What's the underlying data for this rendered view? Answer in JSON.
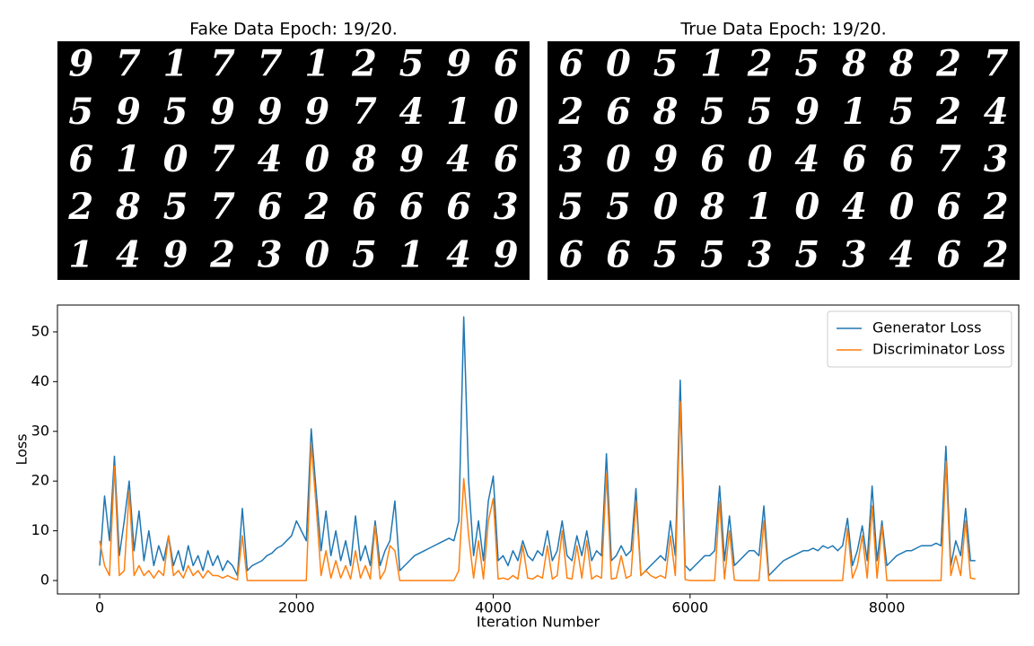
{
  "image_panels": [
    {
      "title": "Fake Data Epoch: 19/20.",
      "digits": [
        [
          "9",
          "7",
          "1",
          "7",
          "7",
          "1",
          "2",
          "5",
          "9",
          "6"
        ],
        [
          "5",
          "9",
          "5",
          "9",
          "9",
          "9",
          "7",
          "4",
          "1",
          "0"
        ],
        [
          "6",
          "1",
          "0",
          "7",
          "4",
          "0",
          "8",
          "9",
          "4",
          "6"
        ],
        [
          "2",
          "8",
          "5",
          "7",
          "6",
          "2",
          "6",
          "6",
          "6",
          "3"
        ],
        [
          "1",
          "4",
          "9",
          "2",
          "3",
          "0",
          "5",
          "1",
          "4",
          "9"
        ]
      ]
    },
    {
      "title": "True Data Epoch: 19/20.",
      "digits": [
        [
          "6",
          "0",
          "5",
          "1",
          "2",
          "5",
          "8",
          "8",
          "2",
          "7"
        ],
        [
          "2",
          "6",
          "8",
          "5",
          "5",
          "9",
          "1",
          "5",
          "2",
          "4"
        ],
        [
          "3",
          "0",
          "9",
          "6",
          "0",
          "4",
          "6",
          "6",
          "7",
          "3"
        ],
        [
          "5",
          "5",
          "0",
          "8",
          "1",
          "0",
          "4",
          "0",
          "6",
          "2"
        ],
        [
          "6",
          "6",
          "5",
          "5",
          "3",
          "5",
          "3",
          "4",
          "6",
          "2"
        ]
      ]
    }
  ],
  "chart_data": {
    "type": "line",
    "xlabel": "Iteration Number",
    "ylabel": "Loss",
    "xlim": [
      -429,
      9340
    ],
    "ylim": [
      -2.7,
      55.4
    ],
    "xticks": [
      0,
      2000,
      4000,
      6000,
      8000
    ],
    "yticks": [
      0,
      10,
      20,
      30,
      40,
      50
    ],
    "legend": "upper right",
    "x": [
      0,
      50,
      100,
      150,
      200,
      250,
      300,
      350,
      400,
      450,
      500,
      550,
      600,
      650,
      700,
      750,
      800,
      850,
      900,
      950,
      1000,
      1050,
      1100,
      1150,
      1200,
      1250,
      1300,
      1350,
      1400,
      1450,
      1500,
      1550,
      1600,
      1650,
      1700,
      1750,
      1800,
      1850,
      1900,
      1950,
      2000,
      2050,
      2100,
      2150,
      2200,
      2250,
      2300,
      2350,
      2400,
      2450,
      2500,
      2550,
      2600,
      2650,
      2700,
      2750,
      2800,
      2850,
      2900,
      2950,
      3000,
      3050,
      3100,
      3150,
      3200,
      3250,
      3300,
      3350,
      3400,
      3450,
      3500,
      3550,
      3600,
      3650,
      3700,
      3750,
      3800,
      3850,
      3900,
      3950,
      4000,
      4050,
      4100,
      4150,
      4200,
      4250,
      4300,
      4350,
      4400,
      4450,
      4500,
      4550,
      4600,
      4650,
      4700,
      4750,
      4800,
      4850,
      4900,
      4950,
      5000,
      5050,
      5100,
      5150,
      5200,
      5250,
      5300,
      5350,
      5400,
      5450,
      5500,
      5550,
      5600,
      5650,
      5700,
      5750,
      5800,
      5850,
      5900,
      5950,
      6000,
      6050,
      6100,
      6150,
      6200,
      6250,
      6300,
      6350,
      6400,
      6450,
      6500,
      6550,
      6600,
      6650,
      6700,
      6750,
      6800,
      6850,
      6900,
      6950,
      7000,
      7050,
      7100,
      7150,
      7200,
      7250,
      7300,
      7350,
      7400,
      7450,
      7500,
      7550,
      7600,
      7650,
      7700,
      7750,
      7800,
      7850,
      7900,
      7950,
      8000,
      8050,
      8100,
      8150,
      8200,
      8250,
      8300,
      8350,
      8400,
      8450,
      8500,
      8550,
      8600,
      8650,
      8700,
      8750,
      8800,
      8850,
      8900
    ],
    "series": [
      {
        "name": "Generator Loss",
        "color": "#1f77b4",
        "values": [
          3,
          17,
          8,
          25,
          5,
          12,
          20,
          6,
          14,
          4,
          10,
          3,
          7,
          4,
          9,
          3,
          6,
          2,
          7,
          3,
          5,
          2,
          6,
          3,
          5,
          2,
          4,
          3,
          1,
          14.5,
          2,
          3,
          3.5,
          4,
          5,
          5.5,
          6.5,
          7,
          8,
          9,
          12,
          10,
          8,
          30.5,
          18,
          6,
          14,
          5,
          10,
          4,
          8,
          3,
          13,
          4,
          7,
          3,
          12,
          3,
          6,
          8,
          16,
          2,
          3,
          4,
          5,
          5.5,
          6,
          6.5,
          7,
          7.5,
          8,
          8.5,
          8,
          12,
          53,
          20,
          5,
          12,
          4,
          16,
          21,
          4,
          5,
          3,
          6,
          4,
          8,
          5,
          4,
          6,
          5,
          10,
          4,
          6,
          12,
          5,
          4,
          9,
          5,
          10,
          4,
          6,
          5,
          25.5,
          4,
          5,
          7,
          5,
          6,
          18.5,
          1,
          2,
          3,
          4,
          5,
          4,
          12,
          5,
          40.3,
          3,
          2,
          3,
          4,
          5,
          5,
          6,
          19,
          4,
          13,
          3,
          4,
          5,
          6,
          6,
          5,
          15,
          1,
          2,
          3,
          4,
          4.5,
          5,
          5.5,
          6,
          6,
          6.5,
          6,
          7,
          6.5,
          7,
          6,
          7,
          12.5,
          3,
          6,
          11,
          4,
          19,
          4,
          12,
          3,
          4,
          5,
          5.5,
          6,
          6,
          6.5,
          7,
          7,
          7,
          7.5,
          7,
          27,
          3,
          8,
          5,
          14.5,
          4,
          4
        ]
      },
      {
        "name": "Discriminator Loss",
        "color": "#ff7f0e",
        "values": [
          8,
          3,
          1,
          23,
          1,
          2,
          18,
          1,
          3,
          1,
          2,
          0.5,
          2,
          1,
          9,
          1,
          2,
          0.5,
          3,
          1,
          2,
          0.5,
          2,
          1,
          1,
          0.5,
          1,
          0.5,
          0.1,
          9,
          0,
          0,
          0,
          0,
          0,
          0,
          0,
          0,
          0,
          0,
          0,
          0,
          0,
          27.5,
          15,
          1,
          6,
          0.5,
          4,
          0.5,
          3,
          0.3,
          6,
          0.5,
          3,
          0.3,
          11,
          0.3,
          2,
          7,
          6,
          0,
          0,
          0,
          0,
          0,
          0,
          0,
          0,
          0,
          0,
          0,
          0,
          2,
          20.5,
          9,
          0.5,
          8,
          0.3,
          12,
          16.5,
          0.3,
          0.5,
          0.2,
          1,
          0.3,
          7,
          0.5,
          0.3,
          1,
          0.5,
          7,
          0.3,
          1,
          10,
          0.5,
          0.3,
          7,
          0.5,
          8,
          0.3,
          1,
          0.5,
          21.5,
          0.3,
          0.5,
          5,
          0.5,
          1,
          16,
          1,
          2,
          1,
          0.5,
          1,
          0.5,
          9,
          1,
          36,
          0.2,
          0,
          0,
          0,
          0,
          0,
          0,
          16,
          0.3,
          10,
          0.1,
          0,
          0,
          0,
          0,
          0,
          12,
          0,
          0,
          0,
          0,
          0,
          0,
          0,
          0,
          0,
          0,
          0,
          0,
          0,
          0,
          0,
          0,
          10.5,
          0.5,
          3,
          9,
          0.5,
          15,
          0.5,
          11,
          0,
          0,
          0,
          0,
          0,
          0,
          0,
          0,
          0,
          0,
          0,
          0,
          24,
          1,
          5,
          1,
          12,
          0.5,
          0.3
        ]
      }
    ]
  }
}
